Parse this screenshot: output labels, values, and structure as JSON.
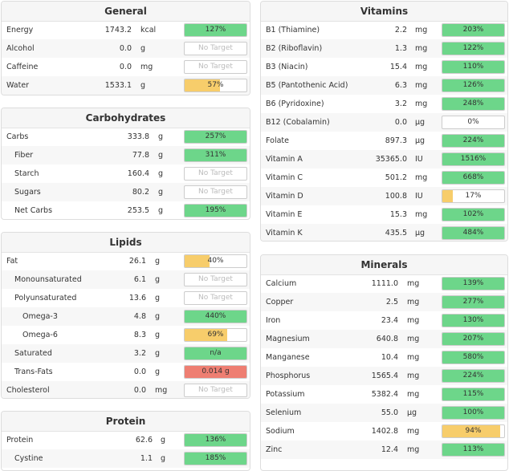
{
  "colors": {
    "green": "#6dd68a",
    "yellow": "#f7cd6b",
    "red": "#ee7e72",
    "none": "#ffffff"
  },
  "panels": [
    {
      "title": "General",
      "rows": [
        {
          "name": "Energy",
          "amount": "1743.2",
          "unit": "kcal",
          "percent": 127,
          "label": "127%",
          "color": "green",
          "indent": 0
        },
        {
          "name": "Alcohol",
          "amount": "0.0",
          "unit": "g",
          "percent": null,
          "label": "No Target",
          "color": "none",
          "indent": 0
        },
        {
          "name": "Caffeine",
          "amount": "0.0",
          "unit": "mg",
          "percent": null,
          "label": "No Target",
          "color": "none",
          "indent": 0
        },
        {
          "name": "Water",
          "amount": "1533.1",
          "unit": "g",
          "percent": 57,
          "label": "57%",
          "color": "yellow",
          "indent": 0
        }
      ]
    },
    {
      "title": "Carbohydrates",
      "rows": [
        {
          "name": "Carbs",
          "amount": "333.8",
          "unit": "g",
          "percent": 257,
          "label": "257%",
          "color": "green",
          "indent": 0
        },
        {
          "name": "Fiber",
          "amount": "77.8",
          "unit": "g",
          "percent": 311,
          "label": "311%",
          "color": "green",
          "indent": 1
        },
        {
          "name": "Starch",
          "amount": "160.4",
          "unit": "g",
          "percent": null,
          "label": "No Target",
          "color": "none",
          "indent": 1
        },
        {
          "name": "Sugars",
          "amount": "80.2",
          "unit": "g",
          "percent": null,
          "label": "No Target",
          "color": "none",
          "indent": 1
        },
        {
          "name": "Net Carbs",
          "amount": "253.5",
          "unit": "g",
          "percent": 195,
          "label": "195%",
          "color": "green",
          "indent": 1
        }
      ]
    },
    {
      "title": "Lipids",
      "rows": [
        {
          "name": "Fat",
          "amount": "26.1",
          "unit": "g",
          "percent": 40,
          "label": "40%",
          "color": "yellow",
          "indent": 0
        },
        {
          "name": "Monounsaturated",
          "amount": "6.1",
          "unit": "g",
          "percent": null,
          "label": "No Target",
          "color": "none",
          "indent": 1
        },
        {
          "name": "Polyunsaturated",
          "amount": "13.6",
          "unit": "g",
          "percent": null,
          "label": "No Target",
          "color": "none",
          "indent": 1
        },
        {
          "name": "Omega-3",
          "amount": "4.8",
          "unit": "g",
          "percent": 440,
          "label": "440%",
          "color": "green",
          "indent": 2
        },
        {
          "name": "Omega-6",
          "amount": "8.3",
          "unit": "g",
          "percent": 69,
          "label": "69%",
          "color": "yellow",
          "indent": 2
        },
        {
          "name": "Saturated",
          "amount": "3.2",
          "unit": "g",
          "percent": 100,
          "label": "n/a",
          "color": "green",
          "indent": 1
        },
        {
          "name": "Trans-Fats",
          "amount": "0.0",
          "unit": "g",
          "percent": 100,
          "label": "0.014 g",
          "color": "red",
          "indent": 1
        },
        {
          "name": "Cholesterol",
          "amount": "0.0",
          "unit": "mg",
          "percent": null,
          "label": "No Target",
          "color": "none",
          "indent": 0
        }
      ]
    },
    {
      "title": "Protein",
      "rows": [
        {
          "name": "Protein",
          "amount": "62.6",
          "unit": "g",
          "percent": 136,
          "label": "136%",
          "color": "green",
          "indent": 0
        },
        {
          "name": "Cystine",
          "amount": "1.1",
          "unit": "g",
          "percent": 185,
          "label": "185%",
          "color": "green",
          "indent": 1
        }
      ]
    },
    {
      "title": "Vitamins",
      "rows": [
        {
          "name": "B1 (Thiamine)",
          "amount": "2.2",
          "unit": "mg",
          "percent": 203,
          "label": "203%",
          "color": "green",
          "indent": 0
        },
        {
          "name": "B2 (Riboflavin)",
          "amount": "1.3",
          "unit": "mg",
          "percent": 122,
          "label": "122%",
          "color": "green",
          "indent": 0
        },
        {
          "name": "B3 (Niacin)",
          "amount": "15.4",
          "unit": "mg",
          "percent": 110,
          "label": "110%",
          "color": "green",
          "indent": 0
        },
        {
          "name": "B5 (Pantothenic Acid)",
          "amount": "6.3",
          "unit": "mg",
          "percent": 126,
          "label": "126%",
          "color": "green",
          "indent": 0
        },
        {
          "name": "B6 (Pyridoxine)",
          "amount": "3.2",
          "unit": "mg",
          "percent": 248,
          "label": "248%",
          "color": "green",
          "indent": 0
        },
        {
          "name": "B12 (Cobalamin)",
          "amount": "0.0",
          "unit": "µg",
          "percent": 0,
          "label": "0%",
          "color": "none",
          "indent": 0
        },
        {
          "name": "Folate",
          "amount": "897.3",
          "unit": "µg",
          "percent": 224,
          "label": "224%",
          "color": "green",
          "indent": 0
        },
        {
          "name": "Vitamin A",
          "amount": "35365.0",
          "unit": "IU",
          "percent": 1516,
          "label": "1516%",
          "color": "green",
          "indent": 0
        },
        {
          "name": "Vitamin C",
          "amount": "501.2",
          "unit": "mg",
          "percent": 668,
          "label": "668%",
          "color": "green",
          "indent": 0
        },
        {
          "name": "Vitamin D",
          "amount": "100.8",
          "unit": "IU",
          "percent": 17,
          "label": "17%",
          "color": "yellow",
          "indent": 0
        },
        {
          "name": "Vitamin E",
          "amount": "15.3",
          "unit": "mg",
          "percent": 102,
          "label": "102%",
          "color": "green",
          "indent": 0
        },
        {
          "name": "Vitamin K",
          "amount": "435.5",
          "unit": "µg",
          "percent": 484,
          "label": "484%",
          "color": "green",
          "indent": 0
        }
      ]
    },
    {
      "title": "Minerals",
      "rows": [
        {
          "name": "Calcium",
          "amount": "1111.0",
          "unit": "mg",
          "percent": 139,
          "label": "139%",
          "color": "green",
          "indent": 0
        },
        {
          "name": "Copper",
          "amount": "2.5",
          "unit": "mg",
          "percent": 277,
          "label": "277%",
          "color": "green",
          "indent": 0
        },
        {
          "name": "Iron",
          "amount": "23.4",
          "unit": "mg",
          "percent": 130,
          "label": "130%",
          "color": "green",
          "indent": 0
        },
        {
          "name": "Magnesium",
          "amount": "640.8",
          "unit": "mg",
          "percent": 207,
          "label": "207%",
          "color": "green",
          "indent": 0
        },
        {
          "name": "Manganese",
          "amount": "10.4",
          "unit": "mg",
          "percent": 580,
          "label": "580%",
          "color": "green",
          "indent": 0
        },
        {
          "name": "Phosphorus",
          "amount": "1565.4",
          "unit": "mg",
          "percent": 224,
          "label": "224%",
          "color": "green",
          "indent": 0
        },
        {
          "name": "Potassium",
          "amount": "5382.4",
          "unit": "mg",
          "percent": 115,
          "label": "115%",
          "color": "green",
          "indent": 0
        },
        {
          "name": "Selenium",
          "amount": "55.0",
          "unit": "µg",
          "percent": 100,
          "label": "100%",
          "color": "green",
          "indent": 0
        },
        {
          "name": "Sodium",
          "amount": "1402.8",
          "unit": "mg",
          "percent": 94,
          "label": "94%",
          "color": "yellow",
          "indent": 0
        },
        {
          "name": "Zinc",
          "amount": "12.4",
          "unit": "mg",
          "percent": 113,
          "label": "113%",
          "color": "green",
          "indent": 0
        }
      ]
    }
  ]
}
